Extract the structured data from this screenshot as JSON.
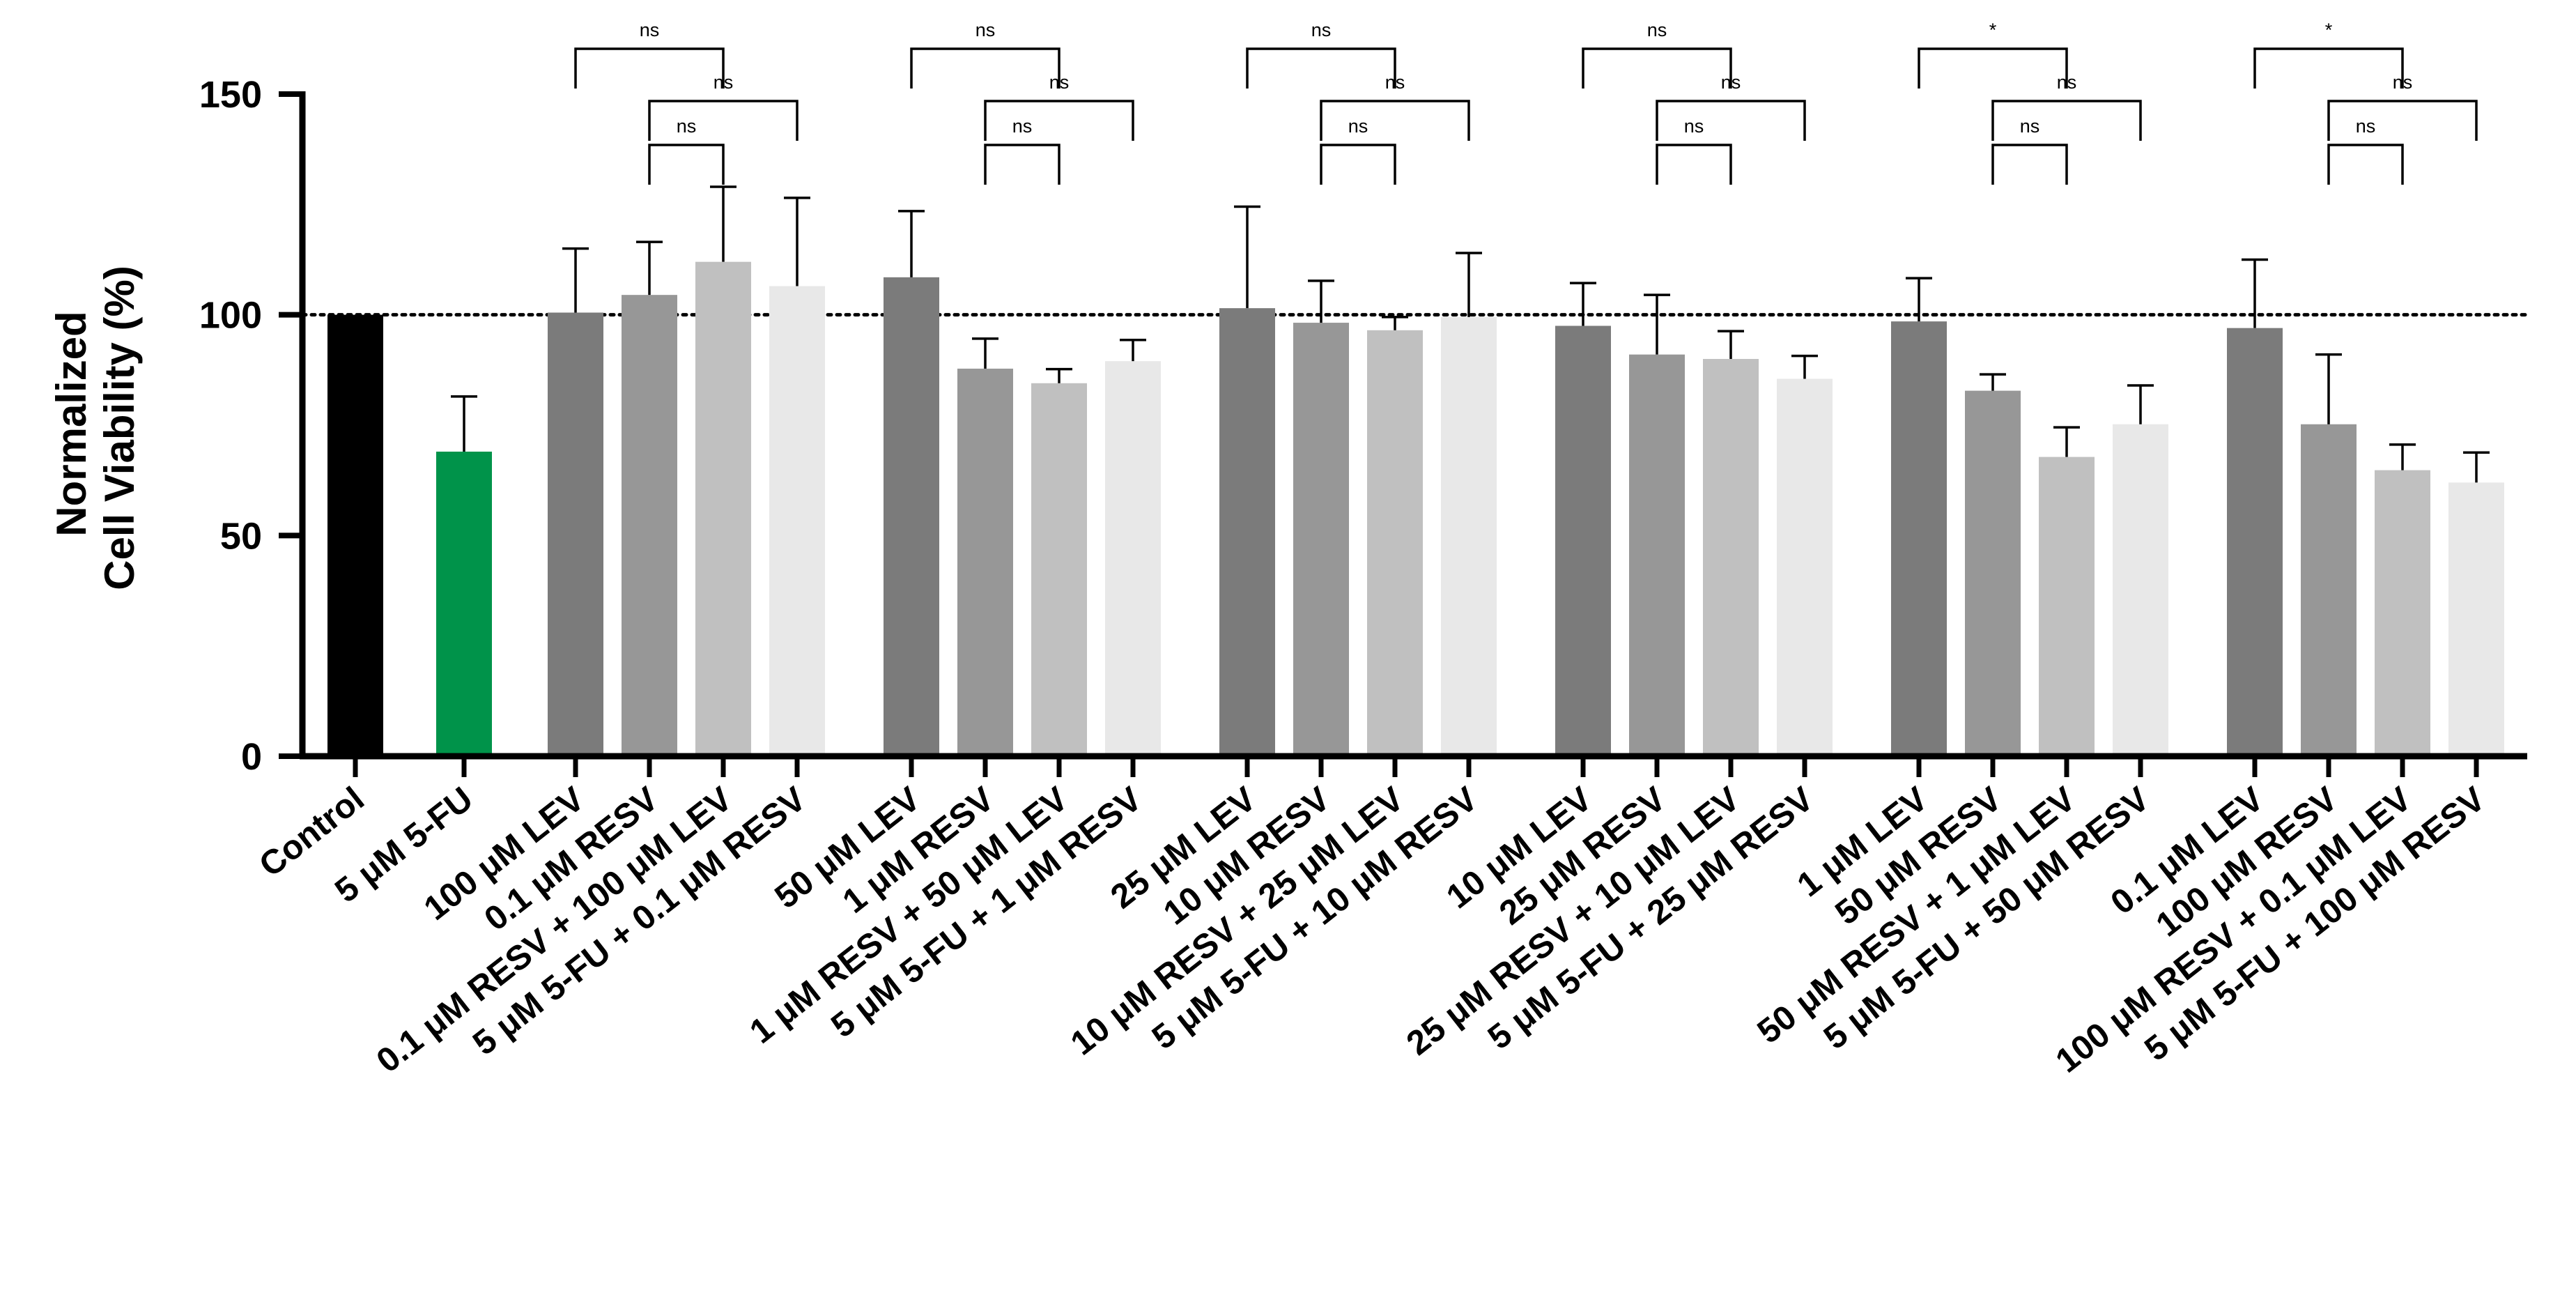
{
  "chart_data": {
    "type": "bar",
    "title": "",
    "xlabel": "",
    "ylabel": [
      "Normalized",
      "Cell Viability (%)"
    ],
    "ylim": [
      0,
      150
    ],
    "yticks": [
      0,
      50,
      100,
      150
    ],
    "reference_line": {
      "value": 100,
      "style": "dotted"
    },
    "legend": "none",
    "categories": [
      "Control",
      "5 μM 5-FU",
      "100 μM LEV",
      "0.1 μM RESV",
      "0.1 μM RESV + 100 μM LEV",
      "5 μM 5-FU + 0.1 μM RESV",
      "50 μM LEV",
      "1 μM RESV",
      "1 μM RESV + 50 μM LEV",
      "5 μM 5-FU + 1 μM RESV",
      "25 μM LEV",
      "10 μM RESV",
      "10 μM RESV + 25 μM LEV",
      "5 μM 5-FU + 10 μM RESV",
      "10 μM LEV",
      "25 μM RESV",
      "25 μM RESV + 10 μM LEV",
      "5 μM 5-FU + 25 μM RESV",
      "1 μM LEV",
      "50 μM RESV",
      "50 μM RESV + 1 μM LEV",
      "5 μM 5-FU + 50 μM RESV",
      "0.1 μM LEV",
      "100 μM RESV",
      "100 μM RESV + 0.1 μM LEV",
      "5 μM 5-FU + 100 μM RESV"
    ],
    "values": [
      100,
      69,
      100.5,
      104.5,
      112,
      106.5,
      108.5,
      87.8,
      84.5,
      89.5,
      101.5,
      98.2,
      96.5,
      99.5,
      97.5,
      91,
      90,
      85.5,
      98.5,
      82.8,
      67.8,
      75.2,
      97,
      75.2,
      64.8,
      62
    ],
    "errors": [
      0,
      12.5,
      14.5,
      12,
      17,
      20,
      15,
      6.8,
      3.2,
      4.8,
      23,
      9.5,
      3,
      14.5,
      9.7,
      13.5,
      6.3,
      5.2,
      9.8,
      3.7,
      6.7,
      8.8,
      15.5,
      15.8,
      5.8,
      6.8
    ],
    "bar_colors": [
      "#000000",
      "#00934A",
      "#7B7B7B",
      "#979797",
      "#C0C0C0",
      "#E8E8E8",
      "#7B7B7B",
      "#979797",
      "#C0C0C0",
      "#E8E8E8",
      "#7B7B7B",
      "#979797",
      "#C0C0C0",
      "#E8E8E8",
      "#7B7B7B",
      "#979797",
      "#C0C0C0",
      "#E8E8E8",
      "#7B7B7B",
      "#979797",
      "#C0C0C0",
      "#E8E8E8",
      "#7B7B7B",
      "#979797",
      "#C0C0C0",
      "#E8E8E8"
    ],
    "significance": [
      {
        "from": 2,
        "to": 4,
        "label": "ns"
      },
      {
        "from": 3,
        "to": 5,
        "label": "ns"
      },
      {
        "from": 3,
        "to": 4,
        "label": "ns"
      },
      {
        "from": 6,
        "to": 8,
        "label": "ns"
      },
      {
        "from": 7,
        "to": 9,
        "label": "ns"
      },
      {
        "from": 7,
        "to": 8,
        "label": "ns"
      },
      {
        "from": 10,
        "to": 12,
        "label": "ns"
      },
      {
        "from": 11,
        "to": 13,
        "label": "ns"
      },
      {
        "from": 11,
        "to": 12,
        "label": "ns"
      },
      {
        "from": 14,
        "to": 16,
        "label": "ns"
      },
      {
        "from": 15,
        "to": 17,
        "label": "ns"
      },
      {
        "from": 15,
        "to": 16,
        "label": "ns"
      },
      {
        "from": 18,
        "to": 20,
        "label": "*"
      },
      {
        "from": 19,
        "to": 21,
        "label": "ns"
      },
      {
        "from": 19,
        "to": 20,
        "label": "ns"
      },
      {
        "from": 22,
        "to": 24,
        "label": "*"
      },
      {
        "from": 23,
        "to": 25,
        "label": "ns"
      },
      {
        "from": 23,
        "to": 24,
        "label": "ns"
      }
    ]
  }
}
